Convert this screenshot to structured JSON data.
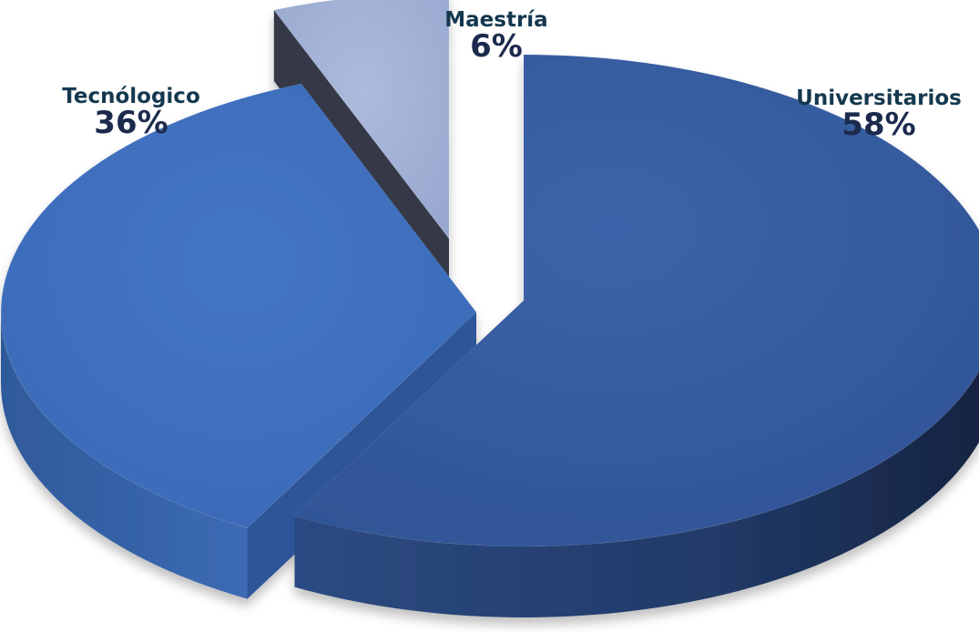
{
  "chart_data": {
    "type": "pie",
    "title": "",
    "categories": [
      "Universitarios",
      "Tecnólogico",
      "Maestría"
    ],
    "values": [
      58,
      36,
      6
    ],
    "labels": [
      "58%",
      "36%",
      "6%"
    ],
    "colors": [
      "#355b9f",
      "#3e6fbe",
      "#a3b2d6"
    ],
    "legend": false,
    "style": "3d-exploded"
  }
}
